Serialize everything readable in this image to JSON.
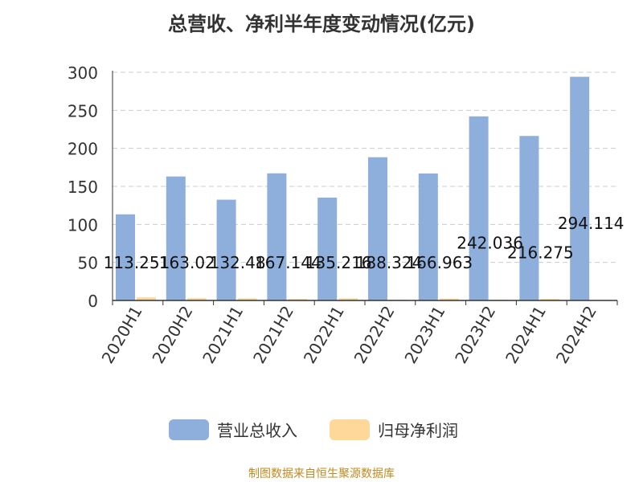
{
  "title": "总营收、净利半年度变动情况(亿元)",
  "source": "制图数据来自恒生聚源数据库",
  "colors": {
    "revenue": "#8eaedb",
    "profit": "#fdd89a",
    "grid": "#cccccc",
    "axis": "#333333",
    "source": "#c28a1e"
  },
  "chart_data": {
    "type": "bar",
    "title": "总营收、净利半年度变动情况(亿元)",
    "categories": [
      "2020H1",
      "2020H2",
      "2021H1",
      "2021H2",
      "2022H1",
      "2022H2",
      "2023H1",
      "2023H2",
      "2024H1",
      "2024H2"
    ],
    "series": [
      {
        "name": "营业总收入",
        "values": [
          113.251,
          163.02,
          132.48,
          167.144,
          135.216,
          188.324,
          166.963,
          242.036,
          216.275,
          294.114
        ],
        "labels": [
          "113.251",
          "163.02",
          "132.48",
          "167.144",
          "135.216",
          "188.324",
          "166.963",
          "242.036",
          "216.275",
          "294.114"
        ]
      },
      {
        "name": "归母净利润",
        "values": [
          4.0,
          3.0,
          2.8,
          2.0,
          2.8,
          1.0,
          2.5,
          1.0,
          2.0,
          0.8
        ]
      }
    ],
    "yticks": [
      "0",
      "50",
      "100",
      "150",
      "200",
      "250",
      "300"
    ],
    "ylim": [
      0,
      300
    ],
    "grid": true,
    "legend": "bottom-center"
  }
}
